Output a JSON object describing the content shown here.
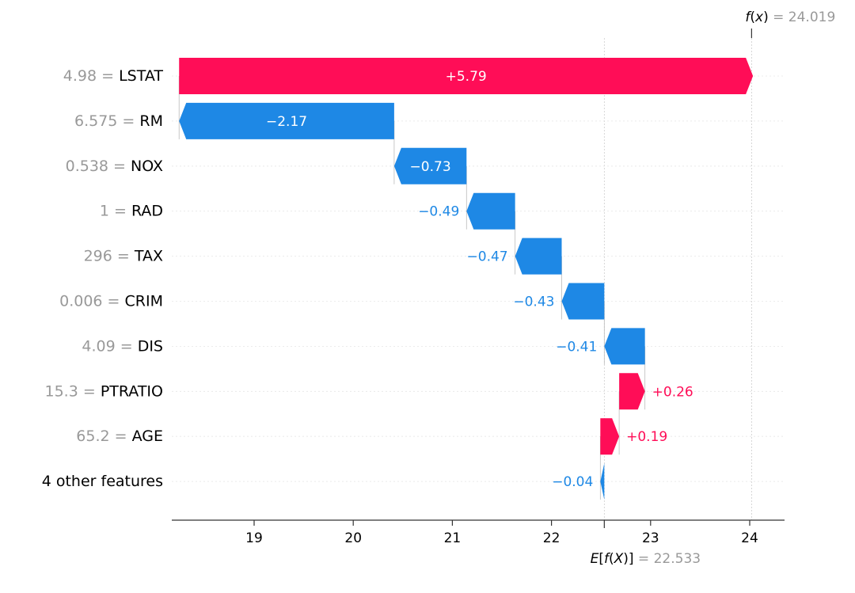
{
  "chart_data": {
    "type": "waterfall",
    "base_value": 22.533,
    "output_value": 24.019,
    "base_label": "E[f(X)] = 22.533",
    "output_label": "f(x) = 24.019",
    "fx_symbol": "f",
    "fx_paren_open": "(",
    "fx_var": "x",
    "fx_paren_close": ")",
    "fx_equals": " = ",
    "fx_value": "24.019",
    "ex_symbol_e": "E",
    "ex_bracket_open": "[",
    "ex_symbol_f": "f",
    "ex_paren_open": "(",
    "ex_var": "X",
    "ex_paren_close": ")",
    "ex_bracket_close": "]",
    "ex_equals": " = ",
    "ex_value": "22.533",
    "xlim": [
      18.18,
      24.35
    ],
    "xticks": [
      19,
      20,
      21,
      22,
      23,
      24
    ],
    "xtick_labels": [
      "19",
      "20",
      "21",
      "22",
      "23",
      "24"
    ],
    "features": [
      {
        "value_text": "4.98",
        "name": "LSTAT",
        "shap": 5.79,
        "label": "+5.79"
      },
      {
        "value_text": "6.575",
        "name": "RM",
        "shap": -2.17,
        "label": "−2.17"
      },
      {
        "value_text": "0.538",
        "name": "NOX",
        "shap": -0.73,
        "label": "−0.73"
      },
      {
        "value_text": "1",
        "name": "RAD",
        "shap": -0.49,
        "label": "−0.49"
      },
      {
        "value_text": "296",
        "name": "TAX",
        "shap": -0.47,
        "label": "−0.47"
      },
      {
        "value_text": "0.006",
        "name": "CRIM",
        "shap": -0.43,
        "label": "−0.43"
      },
      {
        "value_text": "4.09",
        "name": "DIS",
        "shap": -0.41,
        "label": "−0.41"
      },
      {
        "value_text": "15.3",
        "name": "PTRATIO",
        "shap": 0.26,
        "label": "+0.26"
      },
      {
        "value_text": "65.2",
        "name": "AGE",
        "shap": 0.19,
        "label": "+0.19"
      },
      {
        "value_text": "",
        "name": "4 other features",
        "shap": -0.04,
        "label": "−0.04"
      }
    ],
    "colors": {
      "positive": "#ff0d57",
      "negative": "#1e88e5",
      "value_text": "#999999",
      "axis": "#333333",
      "label_on_bar": "#ffffff"
    }
  }
}
